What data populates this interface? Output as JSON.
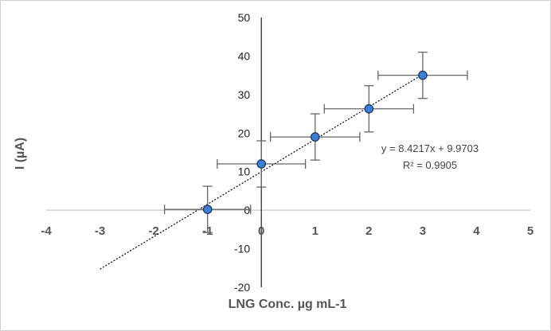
{
  "chart_data": {
    "type": "scatter",
    "xlabel": "LNG Conc. µg mL-1",
    "ylabel": "I (µA)",
    "xlim": [
      -4,
      5
    ],
    "ylim": [
      -20,
      50
    ],
    "x_ticks": [
      "-4",
      "-3",
      "-2",
      "-1",
      "0",
      "1",
      "2",
      "3",
      "4",
      "5"
    ],
    "y_ticks": [
      "50",
      "40",
      "30",
      "20",
      "10",
      "0",
      "-10",
      "-20"
    ],
    "grid": false,
    "points": [
      {
        "x": -1,
        "y": 0.2,
        "x_err": 0.8,
        "y_err": 6
      },
      {
        "x": 0,
        "y": 12,
        "x_err": 0.82,
        "y_err": 6
      },
      {
        "x": 1,
        "y": 19,
        "x_err": 0.83,
        "y_err": 6
      },
      {
        "x": 2,
        "y": 26.3,
        "x_err": 0.83,
        "y_err": 6
      },
      {
        "x": 3,
        "y": 35,
        "x_err": 0.83,
        "y_err": 6
      }
    ],
    "trendline": {
      "type": "linear",
      "slope": 8.4217,
      "intercept": 9.9703,
      "x_range": [
        -3,
        3
      ],
      "equation": "y = 8.4217x + 9.9703",
      "r_squared": "R² = 0.9905"
    },
    "colors": {
      "marker_fill": "#3A7FD5",
      "marker_stroke": "#1F3A60",
      "error_bar": "#666666",
      "axis": "#222222",
      "trendline": "#000000"
    }
  }
}
